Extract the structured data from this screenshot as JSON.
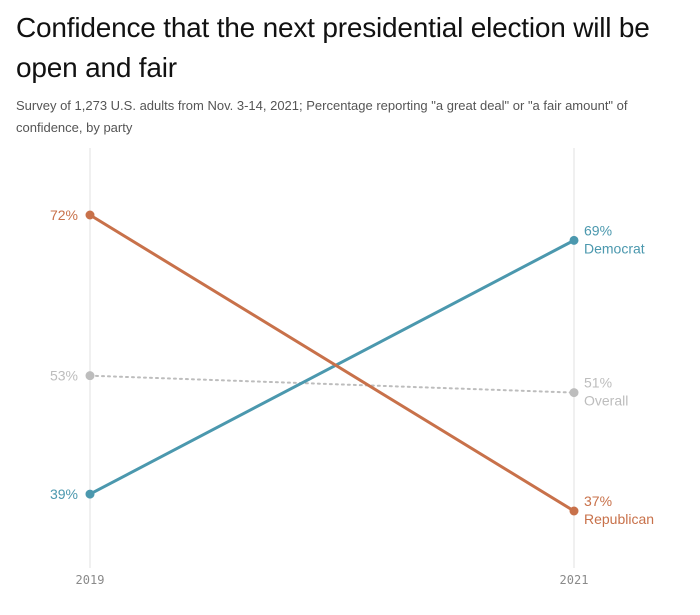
{
  "title": "Confidence that the next presidential election will be open and fair",
  "subtitle": "Survey of 1,273 U.S. adults from Nov. 3-14, 2021; Percentage reporting \"a great deal\" or \"a fair amount\" of confidence, by party",
  "chart_data": {
    "type": "line",
    "title": "Confidence that the next presidential election will be open and fair",
    "subtitle": "Survey of 1,273 U.S. adults from Nov. 3-14, 2021; Percentage reporting \"a great deal\" or \"a fair amount\" of confidence, by party",
    "x": [
      "2019",
      "2021"
    ],
    "xlabel": "",
    "ylabel": "",
    "unit": "%",
    "grid": false,
    "legend": "direct labels at right end of lines",
    "series": [
      {
        "name": "Republican",
        "values": [
          72,
          37
        ],
        "color": "#c8714a",
        "style": "solid",
        "labels": [
          "72%",
          "37%"
        ]
      },
      {
        "name": "Democrat",
        "values": [
          39,
          69
        ],
        "color": "#4b98ae",
        "style": "solid",
        "labels": [
          "39%",
          "69%"
        ]
      },
      {
        "name": "Overall",
        "values": [
          53,
          51
        ],
        "color": "#bdbdbd",
        "style": "dotted",
        "labels": [
          "53%",
          "51%"
        ]
      }
    ]
  }
}
